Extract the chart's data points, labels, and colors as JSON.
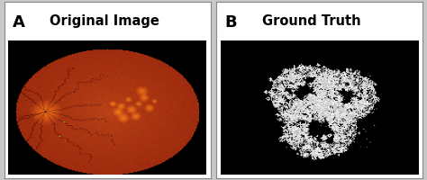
{
  "panel_a_label": "A",
  "panel_b_label": "B",
  "panel_a_title": "Original Image",
  "panel_b_title": "Ground Truth",
  "bg_color": "#c8c8c8",
  "label_fontsize": 13,
  "title_fontsize": 10.5
}
